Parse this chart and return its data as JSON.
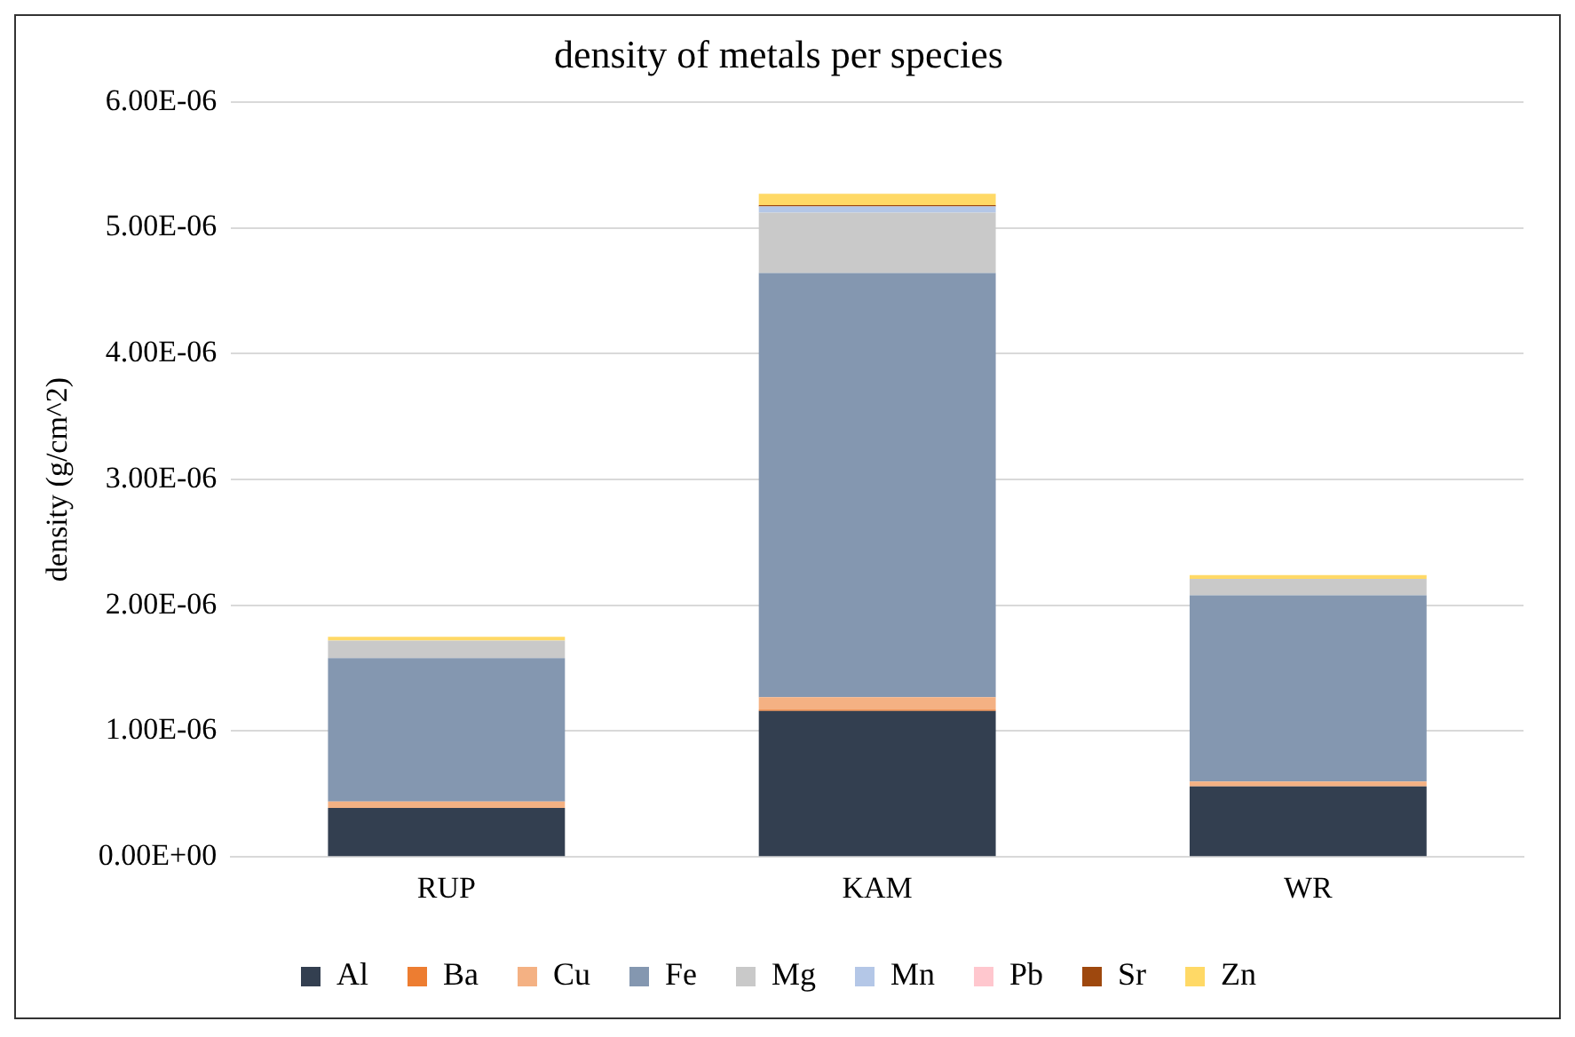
{
  "chart_data": {
    "type": "bar",
    "title": "density of metals per species",
    "ylabel": "density (g/cm^2)",
    "stacked": true,
    "grid": "y",
    "legend": "bottom",
    "categories": [
      "RUP",
      "KAM",
      "WR"
    ],
    "ylim": [
      0,
      6e-06
    ],
    "yticks": [
      {
        "value": 0,
        "label": "0.00E+00"
      },
      {
        "value": 1e-06,
        "label": "1.00E-06"
      },
      {
        "value": 2e-06,
        "label": "2.00E-06"
      },
      {
        "value": 3e-06,
        "label": "3.00E-06"
      },
      {
        "value": 4e-06,
        "label": "4.00E-06"
      },
      {
        "value": 5e-06,
        "label": "5.00E-06"
      },
      {
        "value": 6e-06,
        "label": "6.00E-06"
      }
    ],
    "series": [
      {
        "name": "Al",
        "color": "#333f50",
        "values": [
          3.9e-07,
          1.16e-06,
          5.6e-07
        ]
      },
      {
        "name": "Ba",
        "color": "#ed7d31",
        "values": [
          0,
          1e-08,
          0
        ]
      },
      {
        "name": "Cu",
        "color": "#f4b183",
        "values": [
          5e-08,
          1e-07,
          4e-08
        ]
      },
      {
        "name": "Fe",
        "color": "#8497b0",
        "values": [
          1.14e-06,
          3.37e-06,
          1.48e-06
        ]
      },
      {
        "name": "Mg",
        "color": "#c9c9c9",
        "values": [
          1.4e-07,
          4.8e-07,
          1.3e-07
        ]
      },
      {
        "name": "Mn",
        "color": "#b4c7e7",
        "values": [
          0,
          5e-08,
          0
        ]
      },
      {
        "name": "Pb",
        "color": "#ffc7ce",
        "values": [
          0,
          0,
          0
        ]
      },
      {
        "name": "Sr",
        "color": "#9e480e",
        "values": [
          0,
          1e-08,
          0
        ]
      },
      {
        "name": "Zn",
        "color": "#ffd966",
        "values": [
          3e-08,
          9e-08,
          3e-08
        ]
      }
    ]
  }
}
